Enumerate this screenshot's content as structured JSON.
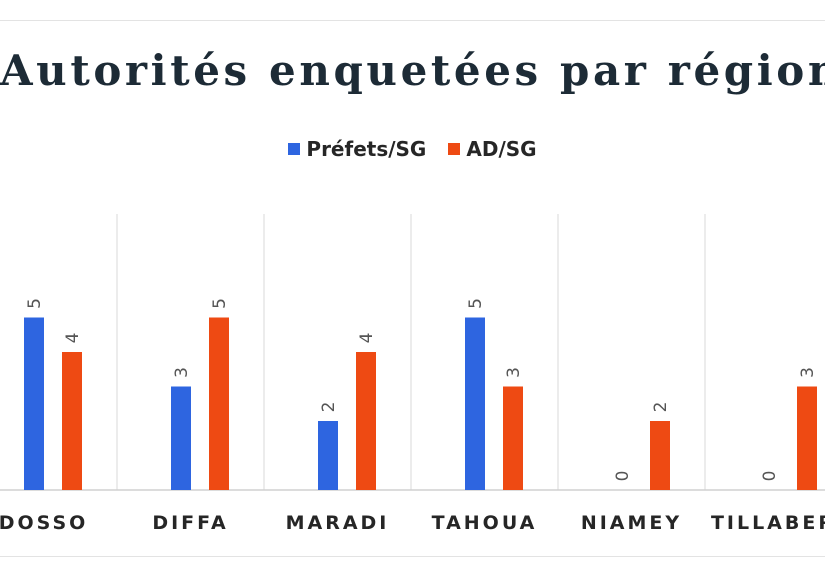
{
  "chart_data": {
    "type": "bar",
    "title": "Autorités enquetées par région",
    "categories": [
      "DOSSO",
      "DIFFA",
      "MARADI",
      "TAHOUA",
      "NIAMEY",
      "TILLABERI"
    ],
    "series": [
      {
        "name": "Préfets/SG",
        "color": "#2e65e0",
        "values": [
          5,
          3,
          2,
          5,
          0,
          0
        ]
      },
      {
        "name": "AD/SG",
        "color": "#ee4a13",
        "values": [
          4,
          5,
          4,
          3,
          2,
          3
        ]
      }
    ],
    "xlabel": "",
    "ylabel": "",
    "ylim": [
      0,
      8
    ],
    "legend_position": "top-center",
    "grid": true
  }
}
